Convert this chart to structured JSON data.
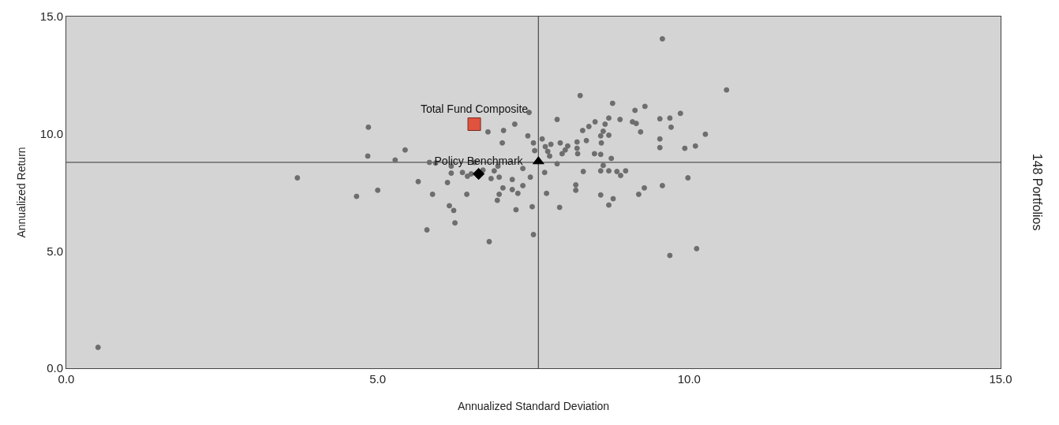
{
  "chart_data": {
    "type": "scatter",
    "xlabel": "Annualized Standard Deviation",
    "ylabel": "Annualized Return",
    "annotations": [
      "148 Portfolios"
    ],
    "xlim": [
      0,
      15
    ],
    "ylim": [
      0,
      15
    ],
    "xticks": [
      {
        "value": 0,
        "label": "0.0"
      },
      {
        "value": 5,
        "label": "5.0"
      },
      {
        "value": 10,
        "label": "10.0"
      },
      {
        "value": 15,
        "label": "15.0"
      }
    ],
    "yticks": [
      {
        "value": 0,
        "label": "0.0"
      },
      {
        "value": 5,
        "label": "5.0"
      },
      {
        "value": 10,
        "label": "10.0"
      },
      {
        "value": 15,
        "label": "15.0"
      }
    ],
    "grid": false,
    "legend": false,
    "ref_lines": [
      {
        "axis": "x",
        "value": 7.58,
        "color": "#555555"
      },
      {
        "axis": "y",
        "value": 8.78,
        "color": "#555555"
      }
    ],
    "series": [
      {
        "color": "#6e6e6e",
        "marker": "circle",
        "x": [
          4.85,
          4.84,
          5.44,
          5.28,
          5.83,
          5.93,
          6.77,
          7.02,
          7.2,
          7.0,
          6.55,
          6.18,
          6.18,
          6.36,
          6.44,
          6.5,
          6.69,
          6.87,
          6.93,
          6.82,
          6.95,
          7.16,
          3.71,
          5.65,
          6.12,
          7.01,
          7.16,
          7.25,
          6.95,
          5.0,
          4.66,
          5.88,
          6.43,
          6.92,
          6.15,
          6.22,
          7.22,
          6.24,
          5.79,
          6.79,
          8.25,
          10.6,
          8.77,
          9.29,
          9.13,
          7.43,
          9.86,
          9.53,
          9.69,
          8.89,
          8.71,
          7.88,
          9.09,
          9.15,
          8.49,
          8.65,
          8.39,
          9.71,
          8.29,
          8.62,
          9.22,
          10.26,
          7.41,
          8.71,
          8.58,
          9.53,
          7.64,
          7.5,
          7.78,
          7.93,
          8.2,
          8.59,
          8.35,
          8.05,
          7.69,
          9.53,
          9.93,
          10.1,
          8.2,
          8.01,
          7.73,
          7.52,
          7.96,
          8.21,
          8.48,
          8.58,
          7.76,
          8.75,
          7.88,
          8.62,
          7.33,
          7.68,
          8.3,
          8.58,
          8.71,
          8.84,
          8.98,
          8.9,
          7.45,
          9.98,
          7.33,
          8.18,
          8.18,
          9.57,
          9.28,
          7.71,
          8.58,
          9.19,
          8.78,
          8.71,
          7.48,
          7.92,
          7.5,
          9.69,
          10.12,
          0.51,
          9.57
        ],
        "values": [
          10.28,
          9.05,
          9.31,
          8.88,
          8.78,
          8.75,
          10.08,
          10.14,
          10.41,
          9.61,
          8.78,
          8.62,
          8.32,
          8.35,
          8.19,
          8.29,
          8.45,
          8.42,
          8.62,
          8.09,
          8.15,
          8.05,
          8.12,
          7.96,
          7.92,
          7.69,
          7.62,
          7.46,
          7.42,
          7.59,
          7.33,
          7.42,
          7.42,
          7.16,
          6.93,
          6.73,
          6.76,
          6.2,
          5.9,
          5.4,
          11.63,
          11.87,
          11.3,
          11.17,
          11.0,
          10.91,
          10.87,
          10.64,
          10.67,
          10.61,
          10.67,
          10.61,
          10.51,
          10.44,
          10.51,
          10.41,
          10.31,
          10.28,
          10.14,
          10.11,
          10.08,
          9.98,
          9.91,
          9.94,
          9.91,
          9.78,
          9.78,
          9.61,
          9.55,
          9.61,
          9.65,
          9.61,
          9.71,
          9.48,
          9.45,
          9.41,
          9.38,
          9.48,
          9.38,
          9.31,
          9.25,
          9.28,
          9.15,
          9.15,
          9.15,
          9.12,
          9.05,
          8.95,
          8.72,
          8.65,
          8.52,
          8.35,
          8.39,
          8.42,
          8.42,
          8.39,
          8.42,
          8.22,
          8.15,
          8.12,
          7.79,
          7.82,
          7.59,
          7.79,
          7.69,
          7.46,
          7.39,
          7.42,
          7.23,
          6.96,
          6.89,
          6.86,
          5.7,
          4.81,
          5.1,
          0.89,
          14.05
        ]
      },
      {
        "name": "Total Fund Composite",
        "color": "#e0533f",
        "marker": "square",
        "x": [
          6.55
        ],
        "values": [
          10.41
        ]
      },
      {
        "name": "Policy Benchmark",
        "color": "#000000",
        "marker": "diamond",
        "x": [
          6.62
        ],
        "values": [
          8.29
        ]
      },
      {
        "color": "#000000",
        "marker": "triangle",
        "x": [
          7.58
        ],
        "values": [
          8.82
        ]
      }
    ]
  }
}
